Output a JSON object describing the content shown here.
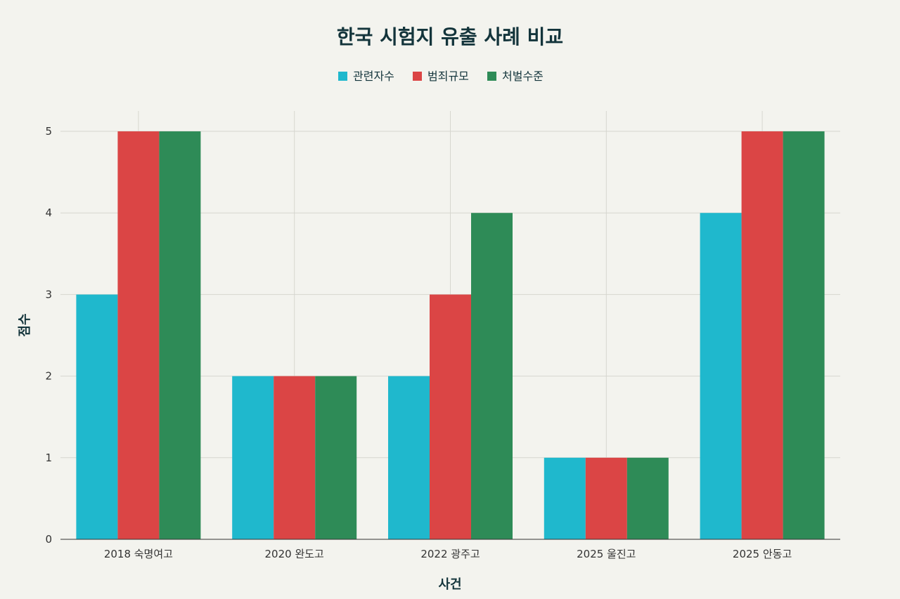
{
  "chart_data": {
    "type": "bar",
    "title": "한국 시험지 유출 사례 비교",
    "xlabel": "사건",
    "ylabel": "점수",
    "categories": [
      "2018 숙명여고",
      "2020 완도고",
      "2022 광주고",
      "2025 울진고",
      "2025 안동고"
    ],
    "series": [
      {
        "name": "관련자수",
        "color": "#1fb8cd",
        "values": [
          3,
          2,
          2,
          1,
          4
        ]
      },
      {
        "name": "범죄규모",
        "color": "#db4545",
        "values": [
          5,
          2,
          3,
          1,
          5
        ]
      },
      {
        "name": "처벌수준",
        "color": "#2e8b57",
        "values": [
          5,
          2,
          4,
          1,
          5
        ]
      }
    ],
    "ylim": [
      0,
      5.25
    ],
    "yticks": [
      0,
      1,
      2,
      3,
      4,
      5
    ],
    "grid": true,
    "legend_position": "top-center"
  }
}
